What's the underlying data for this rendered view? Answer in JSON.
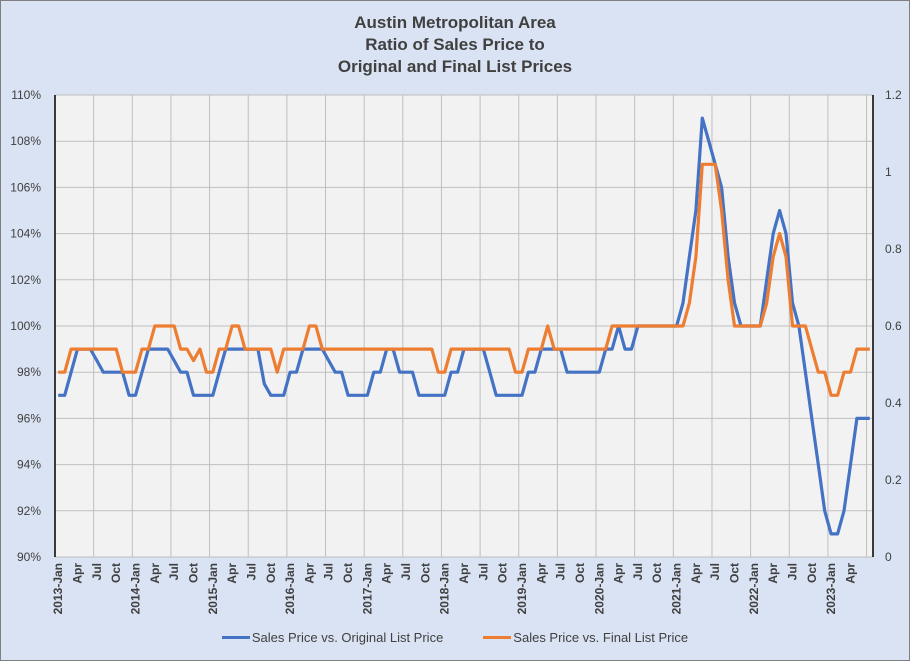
{
  "chart_data": {
    "type": "line",
    "title": [
      "Austin Metropolitan Area",
      "Ratio of Sales Price to",
      "Original and Final List Prices"
    ],
    "x_start": "2013-Jan",
    "x_tick_interval_months": 3,
    "x_tick_labels": [
      "2013-Jan",
      "Apr",
      "Jul",
      "Oct",
      "2014-Jan",
      "Apr",
      "Jul",
      "Oct",
      "2015-Jan",
      "Apr",
      "Jul",
      "Oct",
      "2016-Jan",
      "Apr",
      "Jul",
      "Oct",
      "2017-Jan",
      "Apr",
      "Jul",
      "Oct",
      "2018-Jan",
      "Apr",
      "Jul",
      "Oct",
      "2019-Jan",
      "Apr",
      "Jul",
      "Oct",
      "2020-Jan",
      "Apr",
      "Jul",
      "Oct",
      "2021-Jan",
      "Apr",
      "Jul",
      "Oct",
      "2022-Jan",
      "Apr",
      "Jul",
      "Oct",
      "2023-Jan",
      "Apr"
    ],
    "y_left": {
      "min": 90,
      "max": 110,
      "step": 2,
      "tick_labels": [
        "90%",
        "92%",
        "94%",
        "96%",
        "98%",
        "100%",
        "102%",
        "104%",
        "106%",
        "108%",
        "110%"
      ]
    },
    "y_right": {
      "min": 0,
      "max": 1.2,
      "step": 0.2,
      "tick_labels": [
        "0",
        "0.2",
        "0.4",
        "0.6",
        "0.8",
        "1",
        "1.2"
      ]
    },
    "grid": true,
    "legend_position": "bottom",
    "series": [
      {
        "name": "Sales Price vs. Original List Price",
        "color": "#4472c4",
        "values": [
          97,
          97,
          98,
          99,
          99,
          99,
          98.5,
          98,
          98,
          98,
          98,
          97,
          97,
          98,
          99,
          99,
          99,
          99,
          98.5,
          98,
          98,
          97,
          97,
          97,
          97,
          98,
          99,
          99,
          99,
          99,
          99,
          99,
          97.5,
          97,
          97,
          97,
          98,
          98,
          99,
          99,
          99,
          99,
          98.5,
          98,
          98,
          97,
          97,
          97,
          97,
          98,
          98,
          99,
          99,
          98,
          98,
          98,
          97,
          97,
          97,
          97,
          97,
          98,
          98,
          99,
          99,
          99,
          99,
          98,
          97,
          97,
          97,
          97,
          97,
          98,
          98,
          99,
          99,
          99,
          99,
          98,
          98,
          98,
          98,
          98,
          98,
          99,
          99,
          100,
          99,
          99,
          100,
          100,
          100,
          100,
          100,
          100,
          100,
          101,
          103,
          105,
          109,
          108,
          107,
          106,
          103,
          101,
          100,
          100,
          100,
          100,
          102,
          104,
          105,
          104,
          101,
          100,
          98,
          96,
          94,
          92,
          91,
          91,
          92,
          94,
          96,
          96,
          96
        ]
      },
      {
        "name": "Sales Price vs. Final List Price",
        "color": "#ed7d31",
        "values": [
          98,
          98,
          99,
          99,
          99,
          99,
          99,
          99,
          99,
          99,
          98,
          98,
          98,
          99,
          99,
          100,
          100,
          100,
          100,
          99,
          99,
          98.5,
          99,
          98,
          98,
          99,
          99,
          100,
          100,
          99,
          99,
          99,
          99,
          99,
          98,
          99,
          99,
          99,
          99,
          100,
          100,
          99,
          99,
          99,
          99,
          99,
          99,
          99,
          99,
          99,
          99,
          99,
          99,
          99,
          99,
          99,
          99,
          99,
          99,
          98,
          98,
          99,
          99,
          99,
          99,
          99,
          99,
          99,
          99,
          99,
          99,
          98,
          98,
          99,
          99,
          99,
          100,
          99,
          99,
          99,
          99,
          99,
          99,
          99,
          99,
          99,
          100,
          100,
          100,
          100,
          100,
          100,
          100,
          100,
          100,
          100,
          100,
          100,
          101,
          103,
          107,
          107,
          107,
          105,
          102,
          100,
          100,
          100,
          100,
          100,
          101,
          103,
          104,
          103,
          100,
          100,
          100,
          99,
          98,
          98,
          97,
          97,
          98,
          98,
          99,
          99,
          99
        ]
      }
    ]
  }
}
